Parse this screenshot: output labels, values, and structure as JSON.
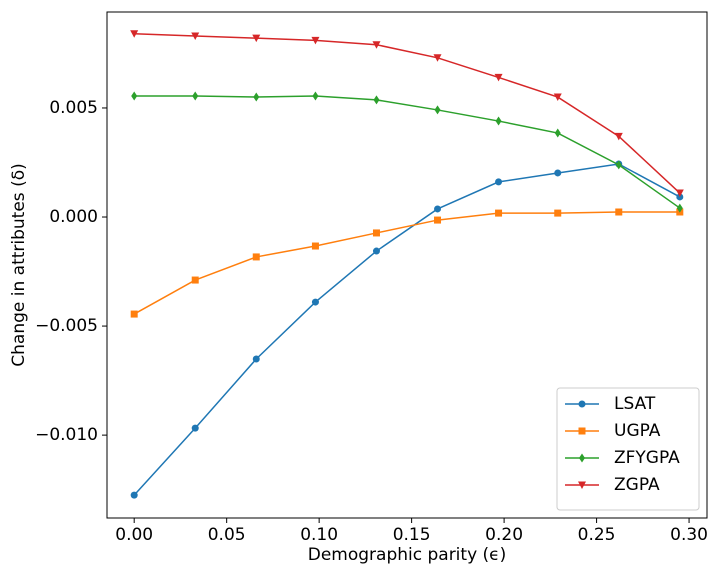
{
  "chart_data": {
    "type": "line",
    "xlabel": "Demographic parity (ϵ)",
    "ylabel": "Change in attributes (δ)",
    "x": [
      0,
      0.033,
      0.066,
      0.098,
      0.131,
      0.164,
      0.197,
      0.229,
      0.262,
      0.295
    ],
    "series": [
      {
        "name": "LSAT",
        "color": "#1f77b4",
        "marker": "circle",
        "values": [
          -0.01275,
          -0.00968,
          -0.00651,
          -0.0039,
          -0.00156,
          0.00037,
          0.00161,
          0.00202,
          0.00243,
          0.00092
        ]
      },
      {
        "name": "UGPA",
        "color": "#ff7f0e",
        "marker": "square",
        "values": [
          -0.00445,
          -0.00289,
          -0.00183,
          -0.00133,
          -0.00073,
          -0.00014,
          0.00018,
          0.00018,
          0.00023,
          0.00023
        ]
      },
      {
        "name": "ZFYGPA",
        "color": "#2ca02c",
        "marker": "diamond",
        "values": [
          0.00555,
          0.00555,
          0.0055,
          0.00555,
          0.00537,
          0.00491,
          0.0044,
          0.00385,
          0.00239,
          0.00041
        ]
      },
      {
        "name": "ZGPA",
        "color": "#d62728",
        "marker": "triangle-down",
        "values": [
          0.0084,
          0.0083,
          0.0082,
          0.0081,
          0.0079,
          0.0073,
          0.0064,
          0.0055,
          0.0037,
          0.0011
        ]
      }
    ],
    "xlim": [
      -0.0147,
      0.3097
    ],
    "ylim": [
      -0.0138,
      0.0094
    ],
    "xticks": [
      {
        "value": 0,
        "label": "0.00"
      },
      0.05,
      {
        "value": 0.1,
        "label": "0.10"
      },
      0.15,
      {
        "value": 0.2,
        "label": "0.20"
      },
      0.25,
      {
        "value": 0.3,
        "label": "0.30"
      }
    ],
    "yticks": [
      {
        "value": -0.01,
        "label": "−0.010"
      },
      {
        "value": -0.005,
        "label": "−0.005"
      },
      {
        "value": 0,
        "label": "0.000"
      },
      0.005
    ],
    "legend": "lower right"
  }
}
